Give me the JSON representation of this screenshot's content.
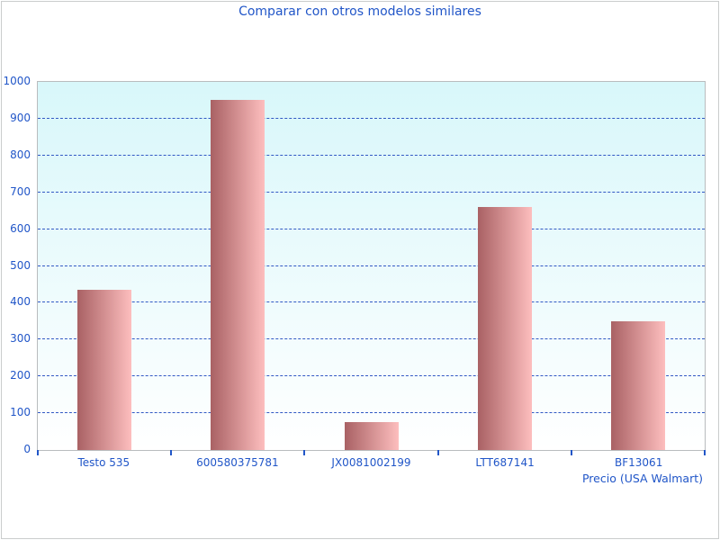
{
  "chart_data": {
    "type": "bar",
    "title": "Comparar con otros modelos similares",
    "categories": [
      "Testo 535",
      "600580375781",
      "JX0081002199",
      "LTT687141",
      "BF13061"
    ],
    "values": [
      435,
      950,
      75,
      660,
      350
    ],
    "xlabel": "Precio (USA Walmart)",
    "ylabel": "",
    "ylim": [
      0,
      1000
    ],
    "yticks": [
      0,
      100,
      200,
      300,
      400,
      500,
      600,
      700,
      800,
      900,
      1000
    ],
    "grid": "horizontal-dashed",
    "legend": "none",
    "colors": {
      "text_blue": "#2156c8",
      "grid_blue": "#3259c4",
      "plot_bg_top": "#d8f7fa",
      "plot_bg_bottom": "#ffffff",
      "bar_gradient_left": "#a96164",
      "bar_gradient_right": "#fdbebe",
      "plot_border": "#b9bcbe",
      "frame_border": "#cacccc"
    }
  }
}
